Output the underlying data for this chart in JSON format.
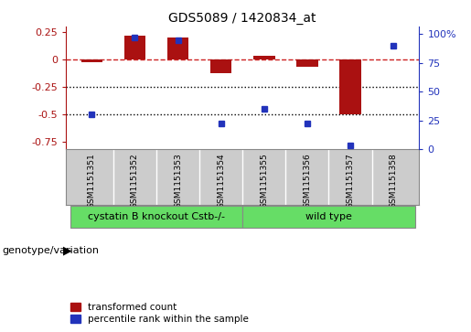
{
  "title": "GDS5089 / 1420834_at",
  "samples": [
    "GSM1151351",
    "GSM1151352",
    "GSM1151353",
    "GSM1151354",
    "GSM1151355",
    "GSM1151356",
    "GSM1151357",
    "GSM1151358"
  ],
  "red_bars": [
    -0.022,
    0.22,
    0.2,
    -0.13,
    0.03,
    -0.07,
    -0.5,
    0.002
  ],
  "blue_dots": [
    0.3,
    0.97,
    0.95,
    0.22,
    0.35,
    0.22,
    0.03,
    0.9
  ],
  "ylim_left": [
    -0.82,
    0.3
  ],
  "ylim_right": [
    0.0,
    1.067
  ],
  "yticks_left": [
    0.25,
    0.0,
    -0.25,
    -0.5,
    -0.75
  ],
  "yticks_right": [
    1.0,
    0.75,
    0.5,
    0.25,
    0.0
  ],
  "ytick_labels_right": [
    "100%",
    "75",
    "50",
    "25",
    "0"
  ],
  "ytick_labels_left": [
    "0.25",
    "0",
    "-0.25",
    "-0.5",
    "-0.75"
  ],
  "group1_label": "cystatin B knockout Cstb-/-",
  "group2_label": "wild type",
  "group_color": "#66DD66",
  "group_boundary": 3.5,
  "red_color": "#aa1111",
  "blue_color": "#2233bb",
  "hline_color": "#cc2222",
  "dotted_line_color": "#000000",
  "bar_width": 0.5,
  "blue_marker_size": 5,
  "legend_red": "transformed count",
  "legend_blue": "percentile rank within the sample",
  "xlabel_left": "genotype/variation",
  "background_plot": "#ffffff",
  "tick_area_bg": "#cccccc",
  "plot_border_color": "#888888"
}
